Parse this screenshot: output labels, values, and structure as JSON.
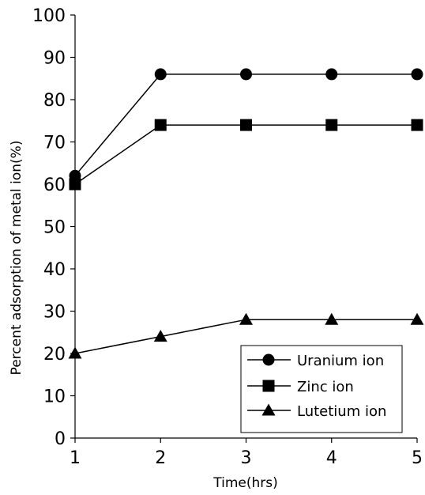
{
  "chart_data": {
    "type": "line",
    "xlabel": "Time(hrs)",
    "ylabel": "Percent adsorption of metal ion(%)",
    "x": [
      1,
      2,
      3,
      4,
      5
    ],
    "xlim": [
      1,
      5
    ],
    "ylim": [
      0,
      100
    ],
    "y_ticks": [
      0,
      10,
      20,
      30,
      40,
      50,
      60,
      70,
      80,
      90,
      100
    ],
    "x_ticks": [
      1,
      2,
      3,
      4,
      5
    ],
    "grid": false,
    "legend_position": "bottom-right",
    "series": [
      {
        "name": "Uranium ion",
        "marker": "circle",
        "values": [
          62,
          86,
          86,
          86,
          86
        ]
      },
      {
        "name": "Zinc ion",
        "marker": "square",
        "values": [
          60,
          74,
          74,
          74,
          74
        ]
      },
      {
        "name": "Lutetium ion",
        "marker": "triangle",
        "values": [
          20,
          24,
          28,
          28,
          28
        ]
      }
    ],
    "colors": {
      "line": "#000000",
      "marker": "#000000",
      "background": "#ffffff"
    }
  }
}
